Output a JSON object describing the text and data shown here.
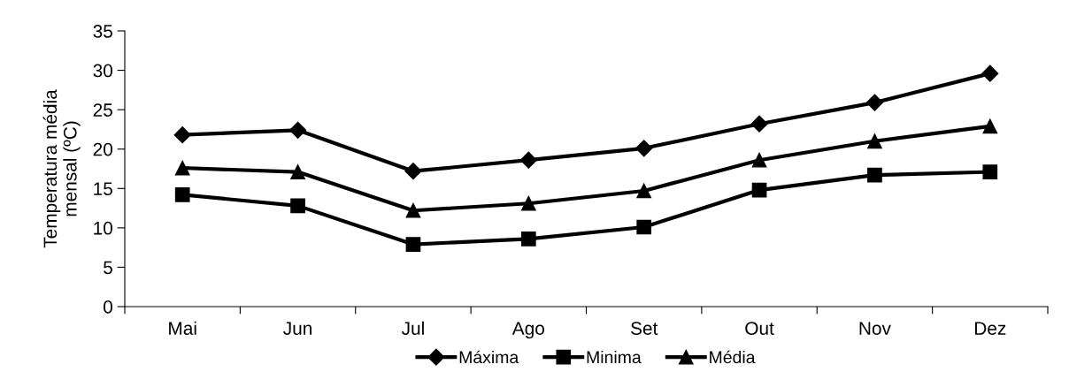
{
  "chart_data": {
    "type": "line",
    "ylabel": "Temperatura média\nmensal (ºC)",
    "categories": [
      "Mai",
      "Jun",
      "Jul",
      "Ago",
      "Set",
      "Out",
      "Nov",
      "Dez"
    ],
    "series": [
      {
        "name": "Máxima",
        "color": "#000000",
        "marker": "diamond",
        "values": [
          21.8,
          22.4,
          17.2,
          18.6,
          20.1,
          23.2,
          25.9,
          29.6
        ]
      },
      {
        "name": "Minima",
        "color": "#000000",
        "marker": "square",
        "values": [
          14.2,
          12.8,
          7.9,
          8.6,
          10.1,
          14.8,
          16.7,
          17.1
        ]
      },
      {
        "name": "Média",
        "color": "#000000",
        "marker": "triangle",
        "values": [
          17.6,
          17.1,
          12.2,
          13.1,
          14.7,
          18.6,
          21.0,
          22.9
        ]
      }
    ],
    "ylim": [
      0,
      35
    ],
    "yticks": [
      0,
      5,
      10,
      15,
      20,
      25,
      30,
      35
    ],
    "grid": false,
    "legend": "bottom",
    "line_style": "solid"
  }
}
